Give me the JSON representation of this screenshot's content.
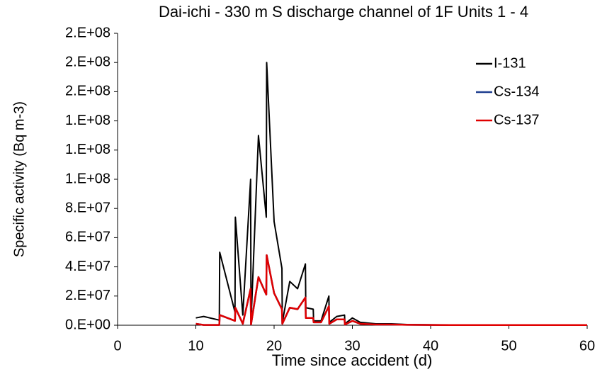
{
  "chart_data": {
    "type": "line",
    "title": "Dai-ichi - 330 m S discharge channel of 1F Units 1 - 4",
    "x_label": "Time since accident (d)",
    "y_label": "Specific activity (Bq m-3)",
    "xlim": [
      0,
      60
    ],
    "xticks": [
      0,
      10,
      20,
      30,
      40,
      50,
      60
    ],
    "ylim": [
      0,
      200000000
    ],
    "yticks": [
      {
        "value": 0,
        "label": "0.E+00"
      },
      {
        "value": 20000000,
        "label": "2.E+07"
      },
      {
        "value": 40000000,
        "label": "4.E+07"
      },
      {
        "value": 60000000,
        "label": "6.E+07"
      },
      {
        "value": 80000000,
        "label": "8.E+07"
      },
      {
        "value": 100000000,
        "label": "1.E+08"
      },
      {
        "value": 120000000,
        "label": "1.E+08"
      },
      {
        "value": 140000000,
        "label": "1.E+08"
      },
      {
        "value": 160000000,
        "label": "2.E+08"
      },
      {
        "value": 180000000,
        "label": "2.E+08"
      },
      {
        "value": 200000000,
        "label": "2.E+08"
      }
    ],
    "x": [
      10,
      11,
      13,
      13.05,
      15,
      15.05,
      16,
      17,
      17.05,
      18,
      19,
      19.05,
      20,
      21,
      21.05,
      22,
      23,
      24,
      24.05,
      25,
      25.05,
      26,
      27,
      27.05,
      28,
      29,
      29.05,
      30,
      31,
      33,
      35,
      37,
      40,
      45,
      50,
      60
    ],
    "series": [
      {
        "name": "I-131",
        "color": "#000000",
        "values": [
          5000000,
          6000000,
          3500000,
          50000000,
          9000000,
          74000000,
          7000000,
          100000000,
          2000000,
          130000000,
          74000000,
          180000000,
          71000000,
          39000000,
          2000000,
          30000000,
          25000000,
          42000000,
          12000000,
          11000000,
          3000000,
          3000000,
          20000000,
          2000000,
          6000000,
          7000000,
          1000000,
          5000000,
          2000000,
          1000000,
          1000000,
          500000,
          300000,
          100000,
          100000,
          100000
        ]
      },
      {
        "name": "Cs-134",
        "color": "#1f3f8f",
        "values": [
          1000000,
          200000,
          200000,
          7000000,
          3000000,
          12000000,
          1000000,
          25000000,
          500000,
          33000000,
          21000000,
          48000000,
          22000000,
          11000000,
          1000000,
          12000000,
          11000000,
          19000000,
          5000000,
          5000000,
          2000000,
          2000000,
          13000000,
          1000000,
          4000000,
          4000000,
          500000,
          3000000,
          1000000,
          500000,
          500000,
          300000,
          200000,
          100000,
          100000,
          100000
        ]
      },
      {
        "name": "Cs-137",
        "color": "#e00000",
        "values": [
          1000000,
          200000,
          200000,
          7000000,
          3000000,
          12000000,
          1000000,
          25000000,
          500000,
          33000000,
          21000000,
          48000000,
          22000000,
          11000000,
          1000000,
          12000000,
          11000000,
          19000000,
          5000000,
          5000000,
          2000000,
          2000000,
          13000000,
          1000000,
          4000000,
          4000000,
          500000,
          3000000,
          1000000,
          500000,
          500000,
          300000,
          200000,
          100000,
          100000,
          100000
        ]
      }
    ]
  }
}
